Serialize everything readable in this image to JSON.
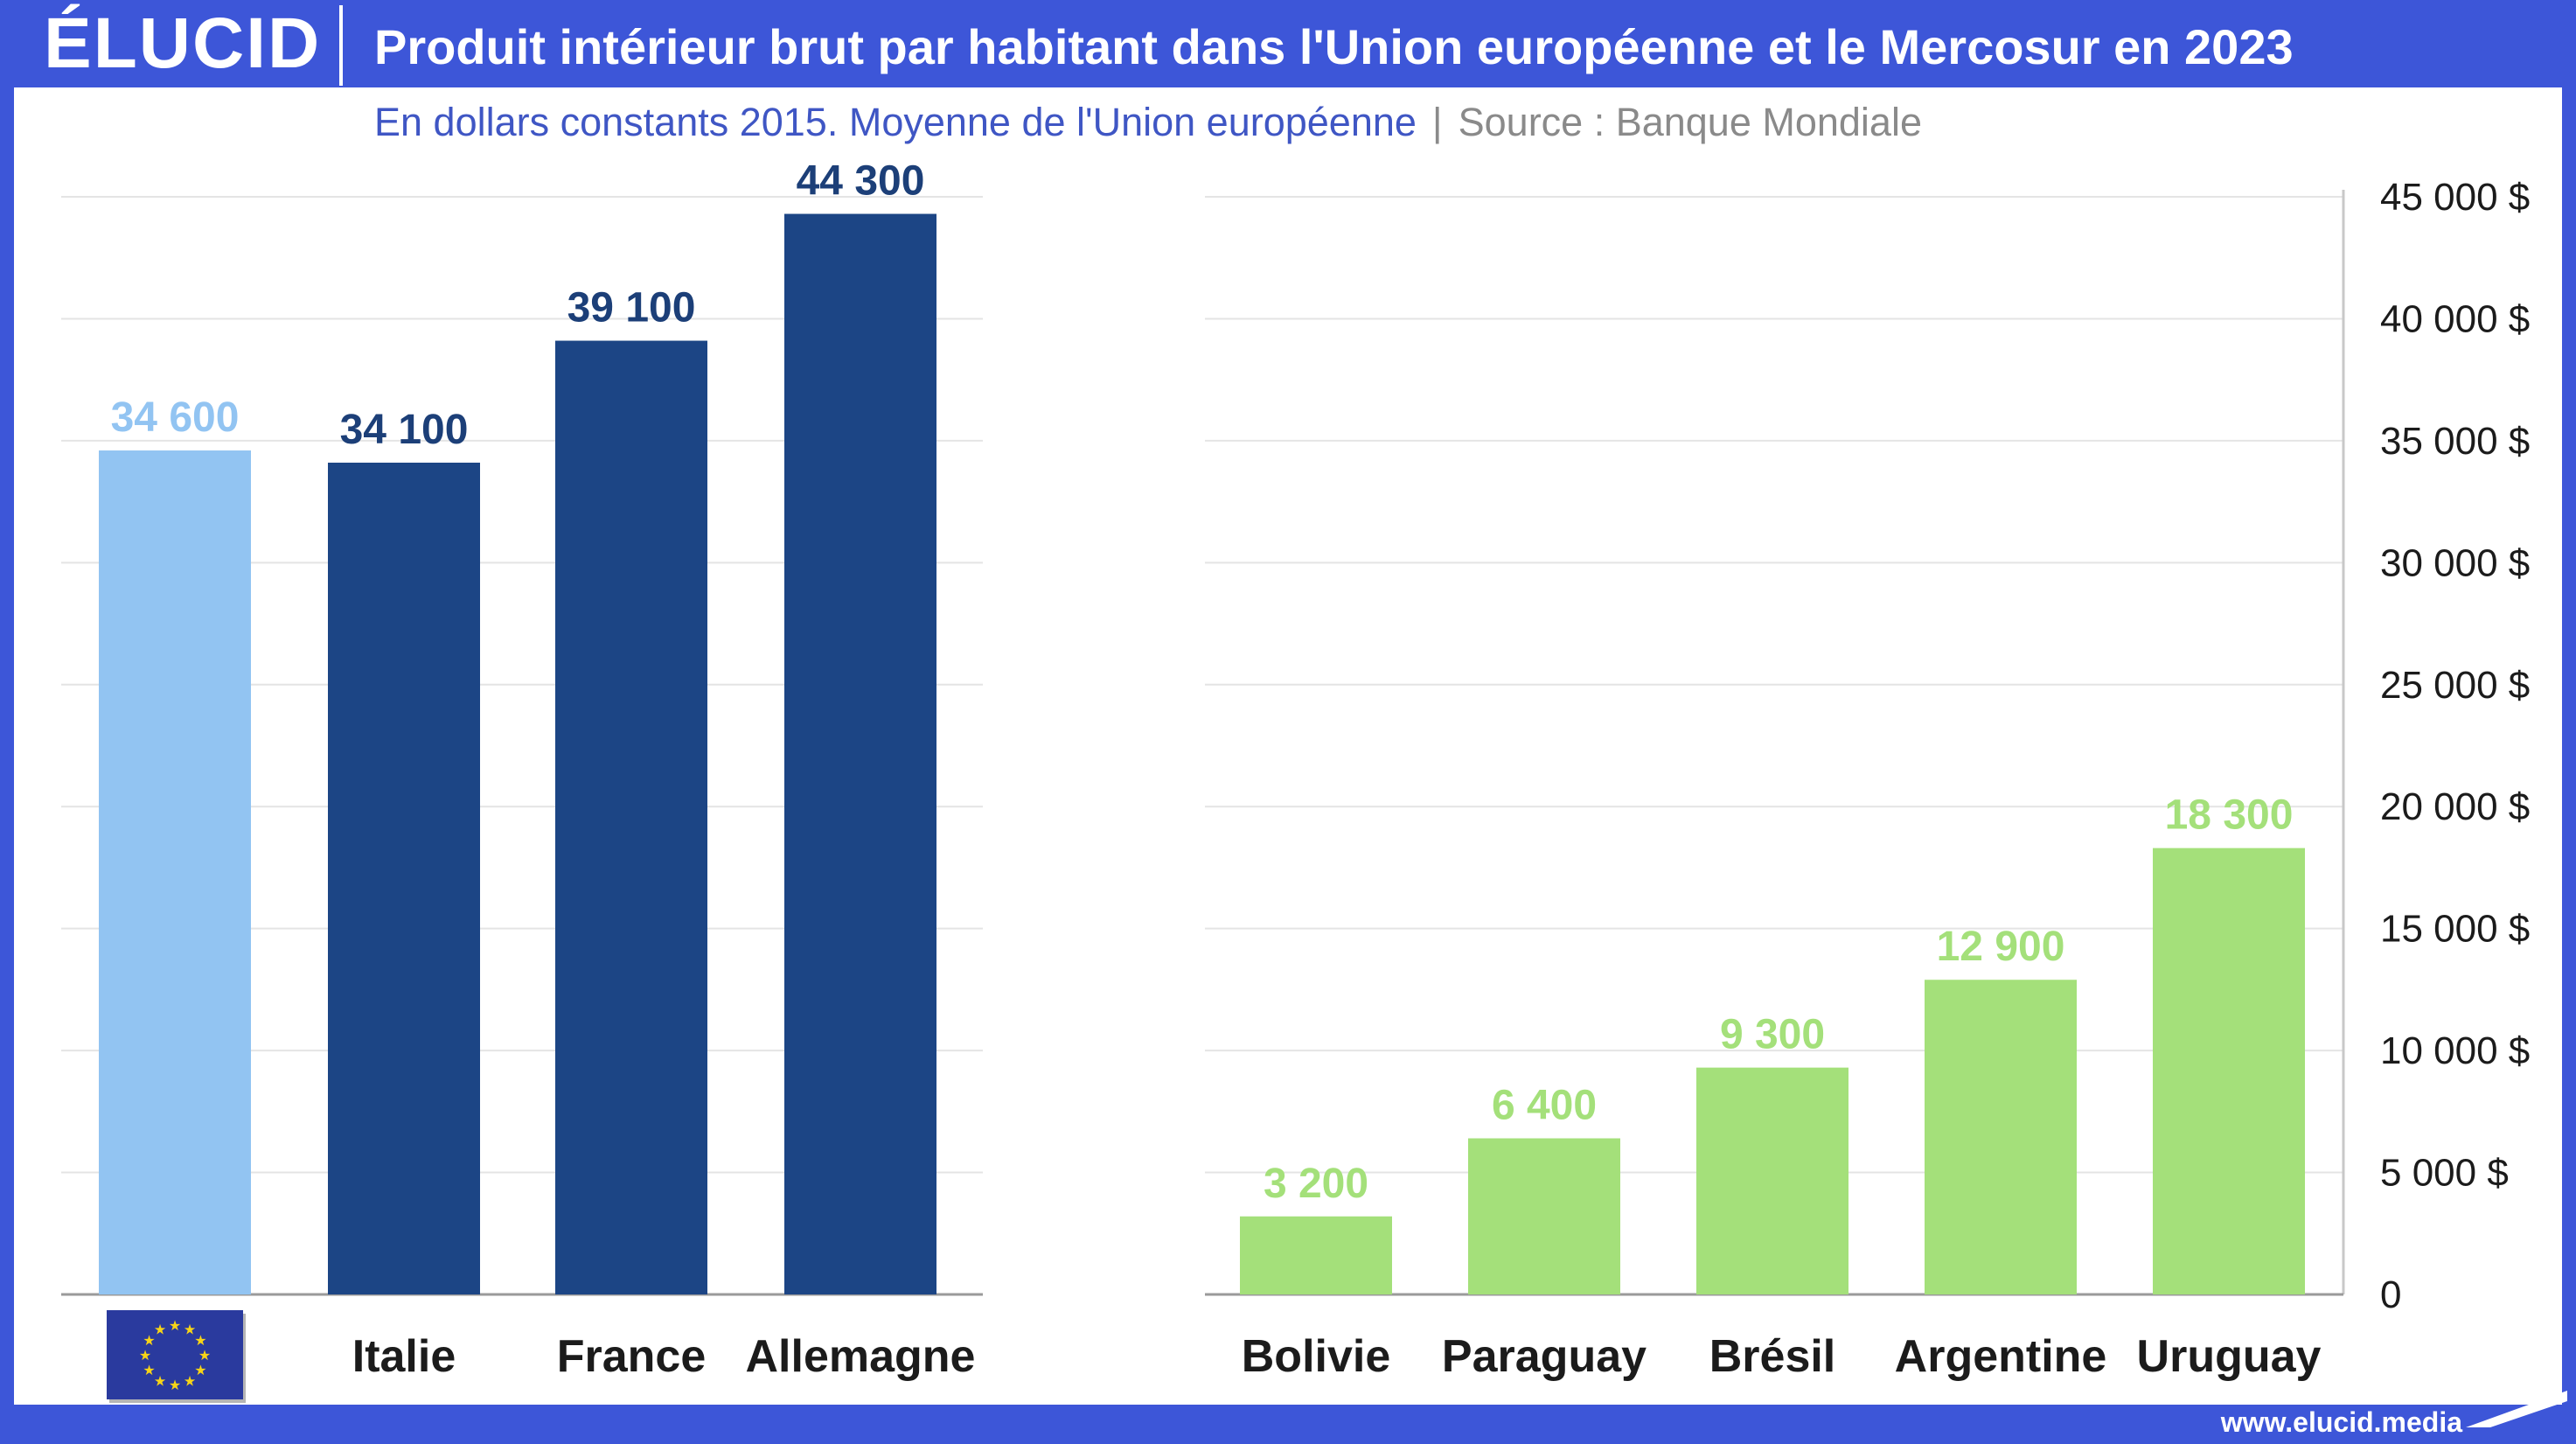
{
  "header": {
    "logo": "ÉLUCID",
    "title": "Produit intérieur brut par habitant dans l'Union européenne et le Mercosur en 2023"
  },
  "subtitle": {
    "main": "En dollars constants 2015. Moyenne de l'Union européenne",
    "separator": "|",
    "source": "Source : Banque Mondiale"
  },
  "footer": {
    "url": "www.elucid.media"
  },
  "colors": {
    "eu_average": "#92c4f2",
    "eu_country": "#1c4585",
    "eu_label": "#1c3f78",
    "mercosur": "#a4e07a",
    "eu_flag": "#2a3a9e",
    "eu_stars": "#f7d417"
  },
  "chart_data": [
    {
      "type": "bar",
      "title": "Produit intérieur brut par habitant dans l'Union européenne et le Mercosur en 2023",
      "panel": "Union européenne",
      "categories": [
        "Union européenne (moyenne)",
        "Italie",
        "France",
        "Allemagne"
      ],
      "category_labels": [
        "",
        "Italie",
        "France",
        "Allemagne"
      ],
      "category_icons": [
        "eu-flag-icon",
        "",
        "",
        ""
      ],
      "values": [
        34600,
        34100,
        39100,
        44300
      ],
      "value_labels": [
        "34 600",
        "34 100",
        "39 100",
        "44 300"
      ],
      "ylim": [
        0,
        45000
      ],
      "grid": true
    },
    {
      "type": "bar",
      "panel": "Mercosur",
      "categories": [
        "Bolivie",
        "Paraguay",
        "Brésil",
        "Argentine",
        "Uruguay"
      ],
      "category_labels": [
        "Bolivie",
        "Paraguay",
        "Brésil",
        "Argentine",
        "Uruguay"
      ],
      "values": [
        3200,
        6400,
        9300,
        12900,
        18300
      ],
      "value_labels": [
        "3 200",
        "6 400",
        "9 300",
        "12 900",
        "18 300"
      ],
      "ylim": [
        0,
        45000
      ],
      "yticks": [
        0,
        5000,
        10000,
        15000,
        20000,
        25000,
        30000,
        35000,
        40000,
        45000
      ],
      "ytick_labels": [
        "0",
        "5 000 $",
        "10 000 $",
        "15 000 $",
        "20 000 $",
        "25 000 $",
        "30 000 $",
        "35 000 $",
        "40 000 $",
        "45 000 $"
      ],
      "grid": true
    }
  ]
}
